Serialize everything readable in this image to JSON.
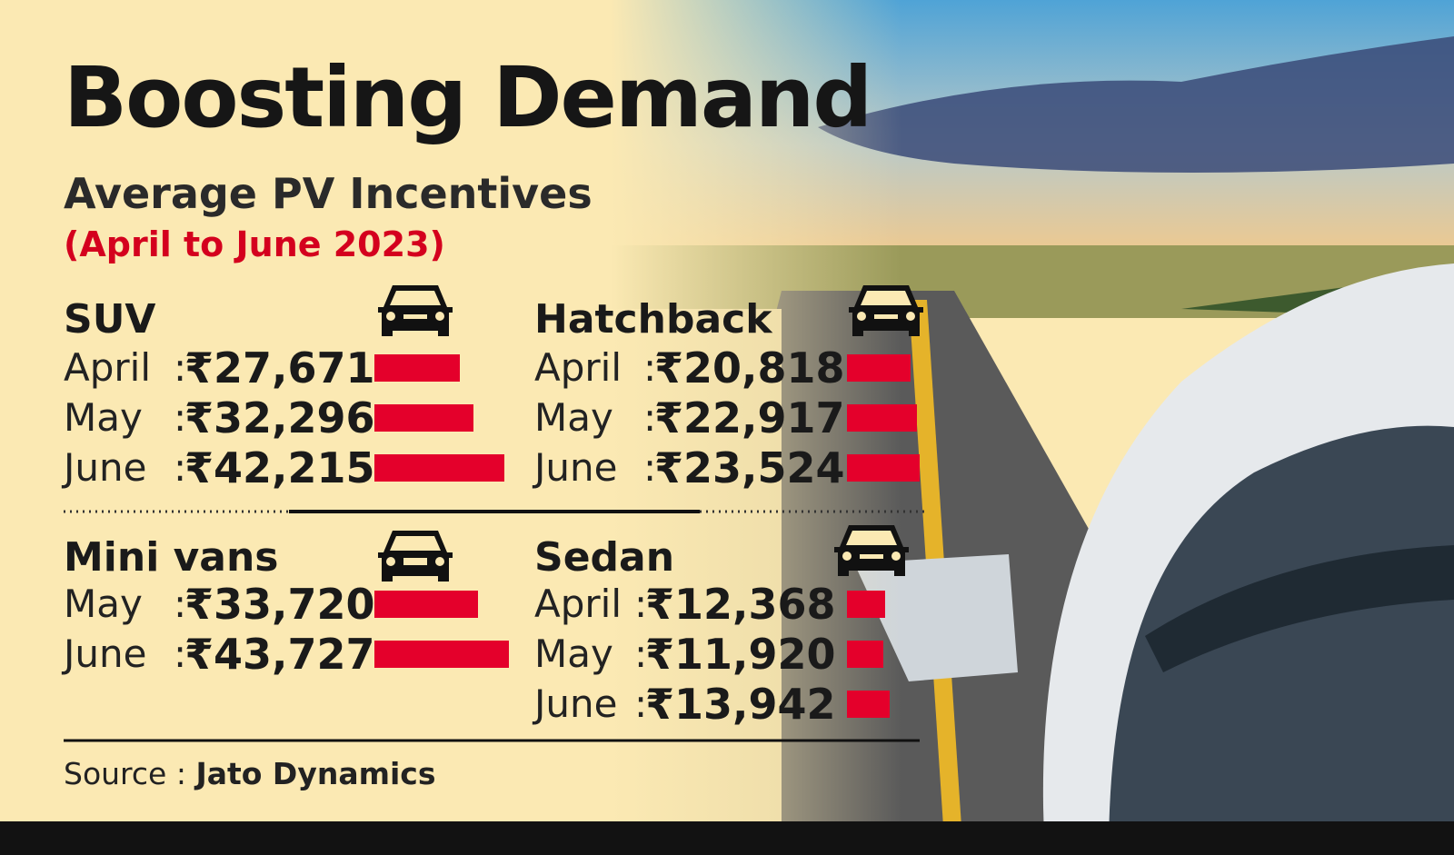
{
  "title": "Boosting Demand",
  "subtitle": "Average PV Incentives",
  "period": "(April to June 2023)",
  "source_label": "Source :",
  "source_name": "Jato Dynamics",
  "colors": {
    "bar": "#e4002b",
    "accent_text": "#d4001e",
    "background": "#fbe9b3"
  },
  "chart_data": {
    "type": "bar",
    "orientation": "horizontal",
    "currency": "₹",
    "panels": [
      {
        "name": "SUV",
        "icon": "car-front-icon",
        "categories": [
          "April",
          "May",
          "June"
        ],
        "values": [
          27671,
          32296,
          42215
        ],
        "labels": [
          "₹27,671",
          "₹32,296",
          "₹42,215"
        ]
      },
      {
        "name": "Hatchback",
        "icon": "car-front-icon",
        "categories": [
          "April",
          "May",
          "June"
        ],
        "values": [
          20818,
          22917,
          23524
        ],
        "labels": [
          "₹20,818",
          "₹22,917",
          "₹23,524"
        ]
      },
      {
        "name": "Mini vans",
        "icon": "van-front-icon",
        "categories": [
          "May",
          "June"
        ],
        "values": [
          33720,
          43727
        ],
        "labels": [
          "₹33,720",
          "₹43,727"
        ]
      },
      {
        "name": "Sedan",
        "icon": "car-front-icon",
        "categories": [
          "April",
          "May",
          "June"
        ],
        "values": [
          12368,
          11920,
          13942
        ],
        "labels": [
          "₹12,368",
          "₹11,920",
          "₹13,942"
        ]
      }
    ]
  }
}
